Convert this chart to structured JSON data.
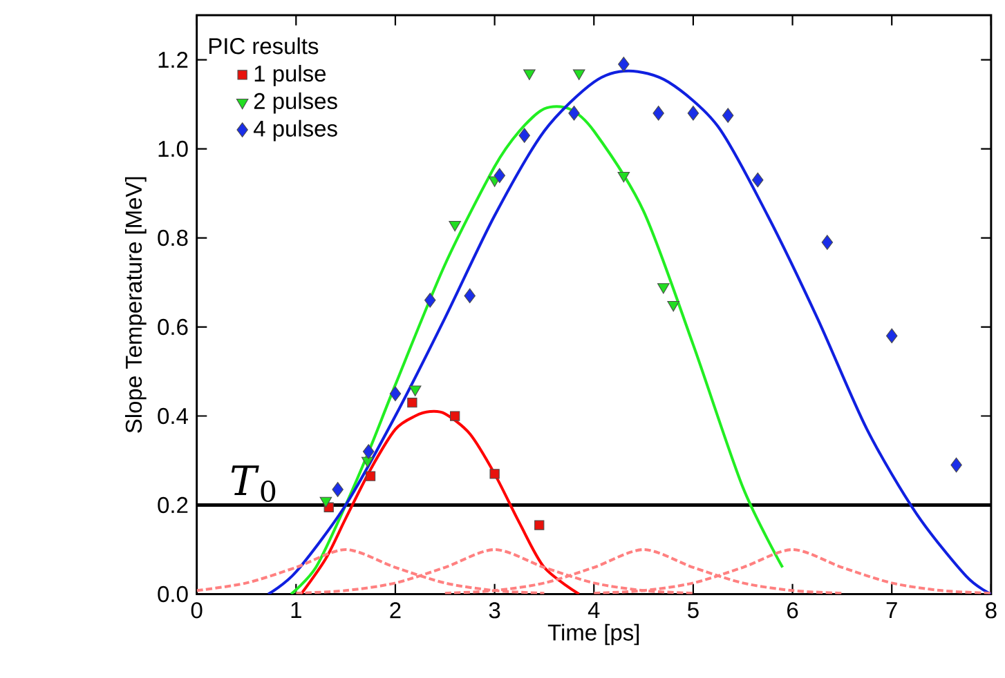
{
  "chart_data": {
    "type": "scatter",
    "xlabel": "Time [ps]",
    "ylabel": "Slope Temperature [MeV]",
    "legend_title": "PIC results",
    "legend": "top left",
    "xlim": [
      0,
      8
    ],
    "ylim": [
      0,
      1.3
    ],
    "xticks": [
      0,
      1,
      2,
      3,
      4,
      5,
      6,
      7,
      8
    ],
    "yticks": [
      {
        "value": 0,
        "label": "0.0"
      },
      {
        "value": 0.2,
        "label": "0.2"
      },
      {
        "value": 0.4,
        "label": "0.4"
      },
      {
        "value": 0.6,
        "label": "0.6"
      },
      {
        "value": 0.8,
        "label": "0.8"
      },
      {
        "value": 1.0,
        "label": "1.0"
      },
      {
        "value": 1.2,
        "label": "1.2"
      }
    ],
    "ref_lines": [
      {
        "axis": "y",
        "value": 0.2,
        "label": "*T*$_{0}$",
        "color": "#000000"
      }
    ],
    "series": [
      {
        "name": "1 pulse",
        "marker": "square",
        "color": "#e8120c",
        "x": [
          1.33,
          1.75,
          2.17,
          2.6,
          3.0,
          3.45
        ],
        "values": [
          0.195,
          0.265,
          0.43,
          0.4,
          0.27,
          0.155
        ]
      },
      {
        "name": "2 pulses",
        "marker": "triangle",
        "color": "#22dd22",
        "x": [
          1.3,
          1.72,
          2.2,
          2.6,
          3.0,
          3.35,
          3.85,
          4.3,
          4.7,
          4.8
        ],
        "values": [
          0.21,
          0.3,
          0.46,
          0.83,
          0.93,
          1.17,
          1.17,
          0.94,
          0.69,
          0.65
        ]
      },
      {
        "name": "4 pulses",
        "marker": "diamond",
        "color": "#1a2ee8",
        "x": [
          1.42,
          1.73,
          2.0,
          2.35,
          2.75,
          3.05,
          3.3,
          3.8,
          4.3,
          4.65,
          5.0,
          5.35,
          5.65,
          6.35,
          7.0,
          7.65
        ],
        "values": [
          0.235,
          0.32,
          0.45,
          0.66,
          0.67,
          0.94,
          1.03,
          1.08,
          1.19,
          1.08,
          1.08,
          1.075,
          0.93,
          0.79,
          0.58,
          0.29
        ]
      },
      {
        "type": "line",
        "color": "#ff0000",
        "x": [
          1.05,
          1.3,
          1.5,
          1.75,
          2.0,
          2.2,
          2.35,
          2.5,
          2.75,
          3.0,
          3.25,
          3.5,
          3.85
        ],
        "values": [
          0,
          0.08,
          0.17,
          0.28,
          0.37,
          0.4,
          0.41,
          0.405,
          0.36,
          0.27,
          0.16,
          0.06,
          0
        ]
      },
      {
        "type": "line",
        "color": "#22ee22",
        "x": [
          0.95,
          1.2,
          1.5,
          1.75,
          2.0,
          2.5,
          3.0,
          3.25,
          3.5,
          3.75,
          4.0,
          4.5,
          5.0,
          5.5,
          5.9
        ],
        "values": [
          0,
          0.06,
          0.2,
          0.33,
          0.47,
          0.74,
          0.96,
          1.04,
          1.09,
          1.09,
          1.04,
          0.86,
          0.56,
          0.24,
          0.06
        ]
      },
      {
        "type": "line",
        "color": "#1020e0",
        "x": [
          0.72,
          1.0,
          1.5,
          2.0,
          2.5,
          3.0,
          3.5,
          4.0,
          4.35,
          4.75,
          5.25,
          5.75,
          6.25,
          6.75,
          7.25,
          7.75,
          8.0
        ],
        "values": [
          0,
          0.05,
          0.2,
          0.4,
          0.62,
          0.85,
          1.04,
          1.15,
          1.175,
          1.15,
          1.05,
          0.85,
          0.62,
          0.37,
          0.18,
          0.04,
          0
        ]
      },
      {
        "type": "line",
        "line_style": "dashed",
        "color": "#ff8080",
        "x": [
          0,
          0.5,
          1.0,
          1.5,
          2.0,
          2.5,
          3.0,
          3.5
        ],
        "values": [
          0.008,
          0.025,
          0.06,
          0.1,
          0.06,
          0.025,
          0.008,
          0.002
        ]
      },
      {
        "type": "line",
        "line_style": "dashed",
        "color": "#ff8080",
        "x": [
          1.0,
          1.5,
          2.0,
          2.5,
          3.0,
          3.5,
          4.0,
          4.5,
          5.0
        ],
        "values": [
          0.002,
          0.008,
          0.025,
          0.06,
          0.1,
          0.06,
          0.025,
          0.008,
          0.002
        ]
      },
      {
        "type": "line",
        "line_style": "dashed",
        "color": "#ff8080",
        "x": [
          2.5,
          3.0,
          3.5,
          4.0,
          4.5,
          5.0,
          5.5,
          6.0,
          6.5
        ],
        "values": [
          0.002,
          0.008,
          0.025,
          0.06,
          0.1,
          0.06,
          0.025,
          0.008,
          0.002
        ]
      },
      {
        "type": "line",
        "line_style": "dashed",
        "color": "#ff8080",
        "x": [
          4.0,
          4.5,
          5.0,
          5.5,
          6.0,
          6.5,
          7.0,
          7.5,
          8.0
        ],
        "values": [
          0.002,
          0.008,
          0.025,
          0.06,
          0.1,
          0.06,
          0.025,
          0.008,
          0.002
        ]
      }
    ]
  }
}
